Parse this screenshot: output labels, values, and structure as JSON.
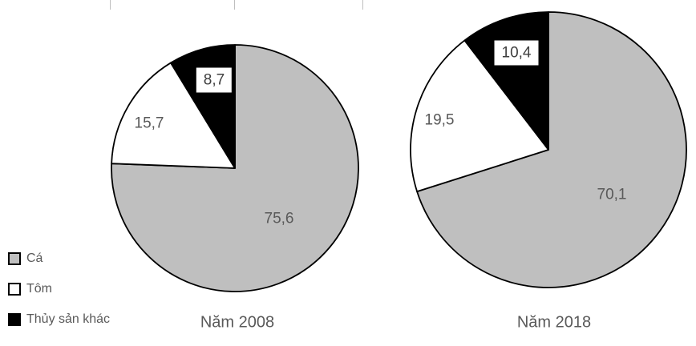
{
  "legend": {
    "items": [
      {
        "label": "Cá",
        "color": "#bfbfbf"
      },
      {
        "label": "Tôm",
        "color": "#ffffff"
      },
      {
        "label": "Thủy sản khác",
        "color": "#000000"
      }
    ]
  },
  "chart_data": [
    {
      "type": "pie",
      "title": "Năm 2008",
      "categories": [
        "Cá",
        "Tôm",
        "Thủy sản khác"
      ],
      "values": [
        75.6,
        15.7,
        8.7
      ],
      "labels": [
        "75,6",
        "15,7",
        "8,7"
      ],
      "colors": [
        "#bfbfbf",
        "#ffffff",
        "#000000"
      ],
      "unit": "%",
      "start_angle": "top",
      "direction": "clockwise",
      "legend_position": "bottom-left"
    },
    {
      "type": "pie",
      "title": "Năm 2018",
      "categories": [
        "Cá",
        "Tôm",
        "Thủy sản khác"
      ],
      "values": [
        70.1,
        19.5,
        10.4
      ],
      "labels": [
        "70,1",
        "19,5",
        "10,4"
      ],
      "colors": [
        "#bfbfbf",
        "#ffffff",
        "#000000"
      ],
      "unit": "%",
      "start_angle": "top",
      "direction": "clockwise",
      "legend_position": "bottom-left"
    }
  ]
}
